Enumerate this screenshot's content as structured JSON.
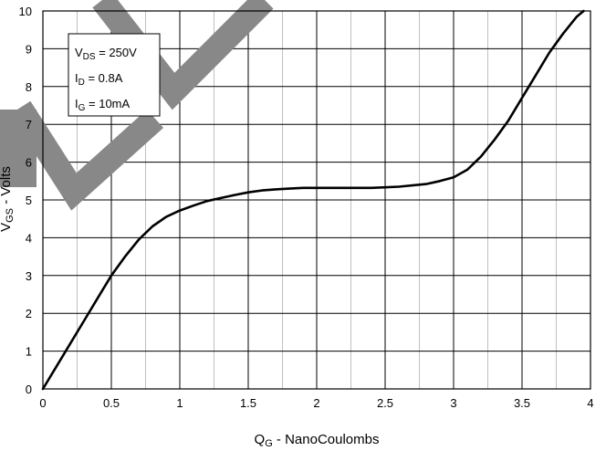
{
  "chart_data": {
    "type": "line",
    "xlabel_main": "Q",
    "xlabel_sub": "G",
    "xlabel_rest": " - NanoCoulombs",
    "ylabel_main": "V",
    "ylabel_sub": "GS",
    "ylabel_rest": " - Volts",
    "xlim": [
      0,
      4
    ],
    "ylim": [
      0,
      10
    ],
    "x_ticks": [
      "0",
      "0.5",
      "1",
      "1.5",
      "2",
      "2.5",
      "3",
      "3.5",
      "4"
    ],
    "y_ticks": [
      "0",
      "1",
      "2",
      "3",
      "4",
      "5",
      "6",
      "7",
      "8",
      "9",
      "10"
    ],
    "grid": true,
    "legend": {
      "position": "top-left",
      "lines": [
        {
          "main": "V",
          "sub": "DS",
          "rest": " = 250V"
        },
        {
          "main": "I",
          "sub": "D",
          "rest": " = 0.8A"
        },
        {
          "main": "I",
          "sub": "G",
          "rest": " = 10mA"
        }
      ]
    },
    "series": [
      {
        "color": "#000000",
        "x": [
          0,
          0.1,
          0.2,
          0.3,
          0.4,
          0.5,
          0.6,
          0.7,
          0.8,
          0.9,
          1.0,
          1.1,
          1.2,
          1.3,
          1.4,
          1.5,
          1.6,
          1.7,
          1.8,
          1.9,
          2.0,
          2.2,
          2.4,
          2.6,
          2.8,
          2.9,
          3.0,
          3.1,
          3.2,
          3.3,
          3.4,
          3.5,
          3.6,
          3.7,
          3.8,
          3.9,
          3.95
        ],
        "y": [
          0,
          0.6,
          1.2,
          1.8,
          2.4,
          3.0,
          3.5,
          3.95,
          4.3,
          4.55,
          4.72,
          4.85,
          4.97,
          5.05,
          5.13,
          5.2,
          5.25,
          5.28,
          5.3,
          5.32,
          5.32,
          5.32,
          5.32,
          5.35,
          5.42,
          5.5,
          5.6,
          5.8,
          6.15,
          6.6,
          7.1,
          7.7,
          8.3,
          8.9,
          9.4,
          9.85,
          10.0
        ]
      }
    ]
  },
  "watermark": {
    "color": "#888888"
  }
}
